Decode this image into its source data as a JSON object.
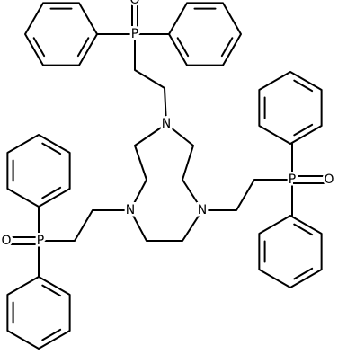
{
  "atoms": [
    {
      "label": "O"
    },
    {
      "label": "P"
    },
    {
      "label": "N"
    },
    {
      "label": "N"
    },
    {
      "label": "N"
    },
    {
      "label": "P"
    },
    {
      "label": "O"
    },
    {
      "label": "P"
    },
    {
      "label": "O"
    }
  ]
}
